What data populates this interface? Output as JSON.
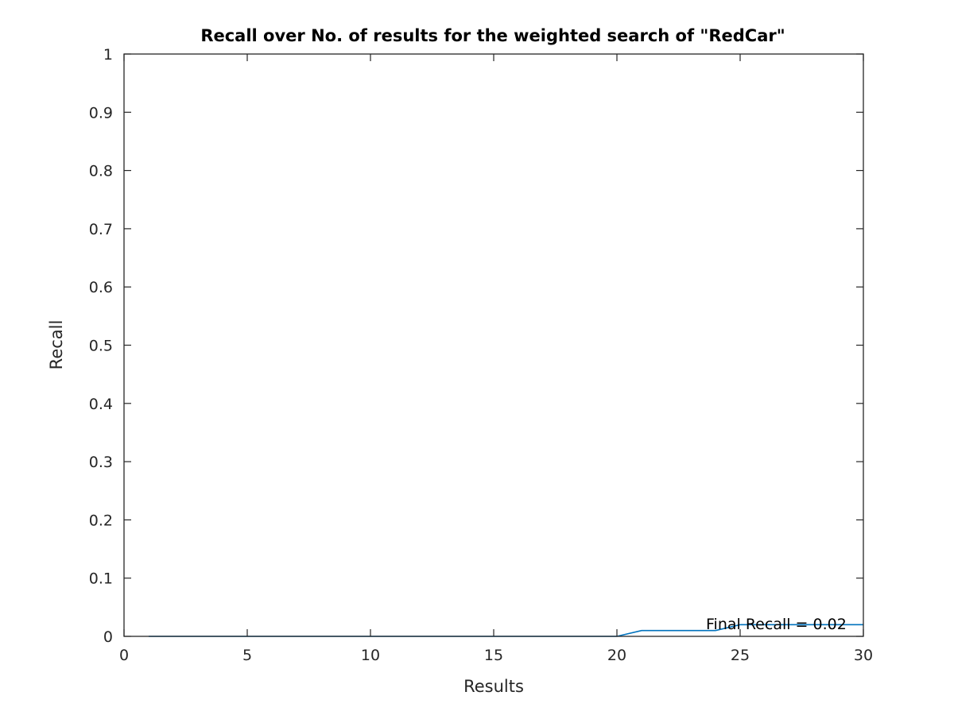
{
  "chart_data": {
    "type": "line",
    "title": "Recall over No. of results for the weighted search of \"RedCar\"",
    "xlabel": "Results",
    "ylabel": "Recall",
    "xlim": [
      0,
      30
    ],
    "ylim": [
      0,
      1
    ],
    "xticks": [
      0,
      5,
      10,
      15,
      20,
      25,
      30
    ],
    "yticks": [
      0,
      0.1,
      0.2,
      0.3,
      0.4,
      0.5,
      0.6,
      0.7,
      0.8,
      0.9,
      1
    ],
    "grid": false,
    "series": [
      {
        "color": "#0072bd",
        "x": [
          1,
          2,
          3,
          4,
          5,
          6,
          7,
          8,
          9,
          10,
          11,
          12,
          13,
          14,
          15,
          16,
          17,
          18,
          19,
          20,
          21,
          22,
          23,
          24,
          25,
          26,
          27,
          28,
          29,
          30
        ],
        "y": [
          0,
          0,
          0,
          0,
          0,
          0,
          0,
          0,
          0,
          0,
          0,
          0,
          0,
          0,
          0,
          0,
          0,
          0,
          0,
          0,
          0.01,
          0.01,
          0.01,
          0.01,
          0.02,
          0.02,
          0.02,
          0.02,
          0.02,
          0.02
        ]
      }
    ],
    "annotation": "Final Recall = 0.02"
  }
}
